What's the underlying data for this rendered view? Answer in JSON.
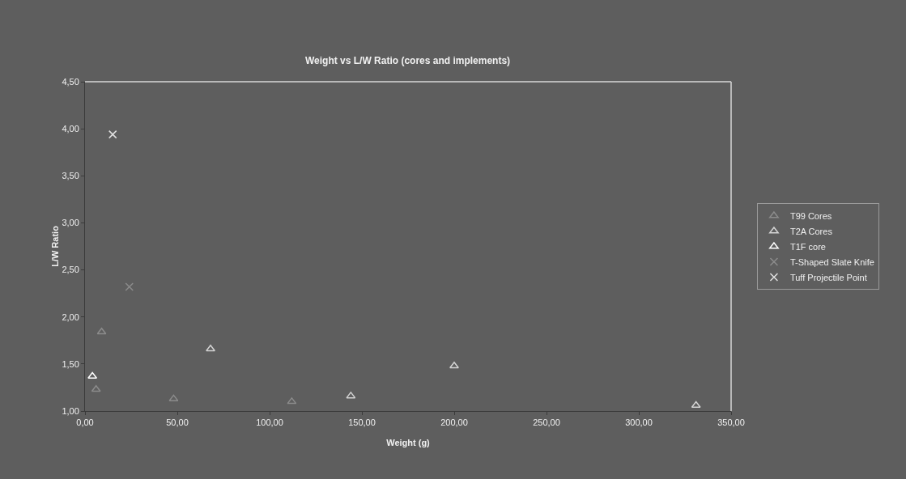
{
  "chart_data": {
    "type": "scatter",
    "title": "Weight vs L/W Ratio (cores and implements)",
    "xlabel": "Weight (g)",
    "ylabel": "L/W Ratio",
    "xlim": [
      0,
      350
    ],
    "ylim": [
      1,
      4.5
    ],
    "xticks": [
      {
        "value": 0,
        "label": "0,00"
      },
      {
        "value": 50,
        "label": "50,00"
      },
      {
        "value": 100,
        "label": "100,00"
      },
      {
        "value": 150,
        "label": "150,00"
      },
      {
        "value": 200,
        "label": "200,00"
      },
      {
        "value": 250,
        "label": "250,00"
      },
      {
        "value": 300,
        "label": "300,00"
      },
      {
        "value": 350,
        "label": "350,00"
      }
    ],
    "yticks": [
      {
        "value": 1,
        "label": "1,00"
      },
      {
        "value": 1.5,
        "label": "1,50"
      },
      {
        "value": 2,
        "label": "2,00"
      },
      {
        "value": 2.5,
        "label": "2,50"
      },
      {
        "value": 3,
        "label": "3,00"
      },
      {
        "value": 3.5,
        "label": "3,50"
      },
      {
        "value": 4,
        "label": "4,00"
      },
      {
        "value": 4.5,
        "label": "4,50"
      }
    ],
    "grid": false,
    "legend": "right",
    "series": [
      {
        "name": "T99 Cores",
        "color": "#8c8c8c",
        "marker": "triangle",
        "x": [
          6,
          9,
          48,
          112
        ],
        "values": [
          1.23,
          1.84,
          1.13,
          1.1
        ]
      },
      {
        "name": "T2A Cores",
        "color": "#d4d4d4",
        "marker": "triangle",
        "x": [
          68,
          144,
          200,
          331
        ],
        "values": [
          1.66,
          1.16,
          1.48,
          1.06
        ]
      },
      {
        "name": "T1F core",
        "color": "#ffffff",
        "marker": "triangle",
        "x": [
          4
        ],
        "values": [
          1.37
        ]
      },
      {
        "name": "T-Shaped Slate Knife",
        "color": "#8c8c8c",
        "marker": "cross",
        "x": [
          24
        ],
        "values": [
          2.32
        ]
      },
      {
        "name": "Tuff Projectile Point",
        "color": "#e0e0e0",
        "marker": "cross",
        "x": [
          15
        ],
        "values": [
          3.94
        ]
      }
    ]
  }
}
